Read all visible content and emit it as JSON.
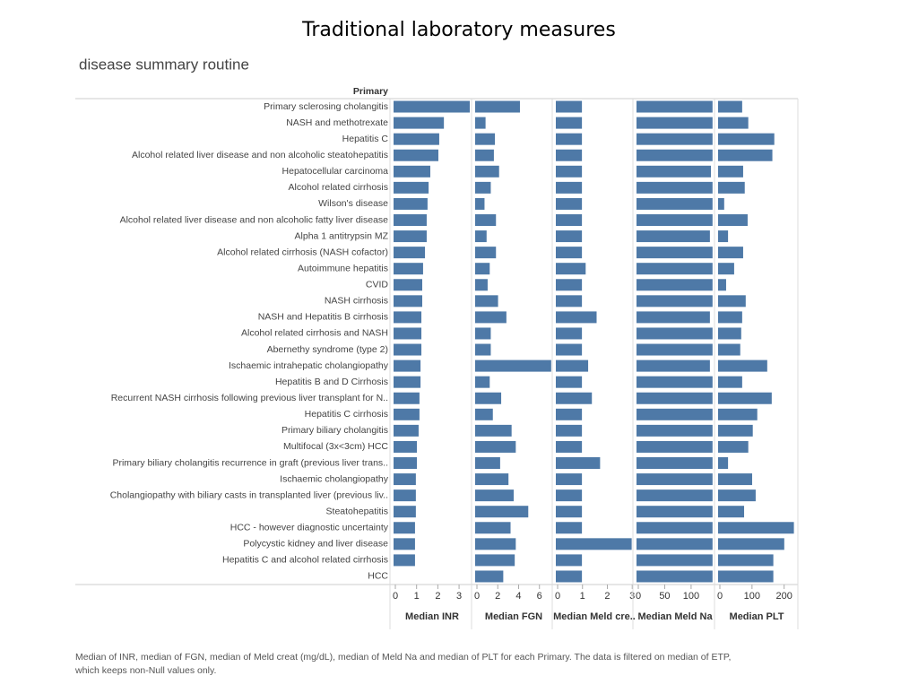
{
  "chart_data": {
    "type": "bar",
    "title": "Traditional laboratory measures",
    "subtitle": "disease summary routine",
    "category_label": "Primary",
    "caption": [
      "Median of INR, median of FGN, median of Meld creat (mg/dL), median of Meld Na and median of PLT for each Primary. The data is filtered on median of ETP,",
      "which keeps non-Null values only."
    ],
    "categories": [
      "Primary sclerosing cholangitis",
      "NASH and methotrexate",
      "Hepatitis C",
      "Alcohol related liver disease and non alcoholic steatohepatitis",
      "Hepatocellular carcinoma",
      "Alcohol related cirrhosis",
      "Wilson's disease",
      "Alcohol related liver disease and non alcoholic fatty liver disease",
      "Alpha 1 antitrypsin MZ",
      "Alcohol related cirrhosis (NASH cofactor)",
      "Autoimmune hepatitis",
      "CVID",
      "NASH cirrhosis",
      "NASH and Hepatitis B cirrhosis",
      "Alcohol related cirrhosis and NASH",
      "Abernethy syndrome (type 2)",
      "Ischaemic intrahepatic cholangiopathy",
      "Hepatitis B and D Cirrhosis",
      "Recurrent NASH cirrhosis following previous liver transplant for N..",
      "Hepatitis C cirrhosis",
      "Primary biliary cholangitis",
      "Multifocal (3x<3cm) HCC",
      "Primary biliary cholangitis recurrence in graft (previous liver trans..",
      "Ischaemic cholangiopathy",
      "Cholangiopathy with biliary casts in transplanted liver (previous liv..",
      "Steatohepatitis",
      "HCC - however diagnostic uncertainty",
      "Polycystic kidney and liver disease",
      "Hepatitis C and alcohol related cirrhosis",
      "HCC"
    ],
    "series": [
      {
        "name": "Median INR",
        "color": "#4e79a7",
        "xlim": [
          0,
          3.63
        ],
        "xticks": [
          0,
          1,
          2,
          3
        ],
        "values": [
          3.59,
          2.37,
          2.15,
          2.11,
          1.73,
          1.65,
          1.6,
          1.56,
          1.56,
          1.48,
          1.39,
          1.35,
          1.35,
          1.31,
          1.31,
          1.31,
          1.27,
          1.27,
          1.22,
          1.22,
          1.18,
          1.1,
          1.1,
          1.05,
          1.05,
          1.05,
          1.01,
          1.01,
          1.01,
          null
        ]
      },
      {
        "name": "Median FGN",
        "color": "#4e79a7",
        "xlim": [
          0,
          7.4
        ],
        "xticks": [
          0,
          2,
          4,
          6
        ],
        "values": [
          4.3,
          1.0,
          1.9,
          1.8,
          2.3,
          1.5,
          0.9,
          2.0,
          1.1,
          2.0,
          1.4,
          1.2,
          2.2,
          3.0,
          1.5,
          1.5,
          7.3,
          1.4,
          2.5,
          1.7,
          3.5,
          3.9,
          2.4,
          3.2,
          3.7,
          5.1,
          3.4,
          3.9,
          3.8,
          2.7
        ]
      },
      {
        "name": "Median Meld cre..",
        "color": "#4e79a7",
        "xlim": [
          0,
          3.1
        ],
        "xticks": [
          0,
          1,
          2,
          3
        ],
        "values": [
          1.05,
          1.05,
          1.05,
          1.05,
          1.05,
          1.05,
          1.05,
          1.05,
          1.05,
          1.05,
          1.2,
          1.05,
          1.05,
          1.64,
          1.05,
          1.05,
          1.3,
          1.05,
          1.45,
          1.05,
          1.05,
          1.05,
          1.78,
          1.05,
          1.05,
          1.05,
          1.05,
          3.05,
          1.05,
          1.05
        ]
      },
      {
        "name": "Median Meld Na",
        "color": "#4e79a7",
        "xlim": [
          0,
          146
        ],
        "xticks": [
          0,
          50,
          100
        ],
        "values": [
          144,
          144,
          144,
          144,
          141,
          144,
          144,
          144,
          139,
          144,
          144,
          144,
          144,
          139,
          144,
          144,
          139,
          144,
          144,
          144,
          144,
          144,
          144,
          144,
          144,
          144,
          144,
          144,
          144,
          144
        ]
      },
      {
        "name": "Median PLT",
        "color": "#4e79a7",
        "xlim": [
          0,
          240
        ],
        "xticks": [
          0,
          100,
          200
        ],
        "values": [
          75,
          94,
          175,
          169,
          78,
          83,
          19,
          92,
          31,
          78,
          50,
          25,
          86,
          75,
          72,
          69,
          153,
          75,
          167,
          122,
          108,
          94,
          31,
          106,
          117,
          81,
          236,
          206,
          172,
          172
        ]
      }
    ]
  }
}
